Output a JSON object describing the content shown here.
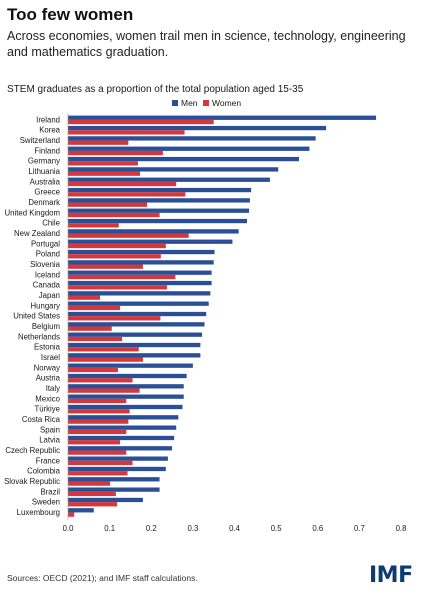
{
  "header": {
    "title": "Too few women",
    "subtitle": "Across economies, women trail men in science, technology, engineering and mathematics graduation."
  },
  "footer": {
    "source": "Sources: OECD (2021); and IMF staff calculations.",
    "logo_text": "IMF"
  },
  "colors": {
    "men": "#2a4f97",
    "women": "#d5373b",
    "logo": "#0e3a73"
  },
  "chart_data": {
    "type": "bar",
    "orientation": "horizontal",
    "title": "STEM graduates as a proportion of the total population aged 15-35",
    "xlim": [
      0,
      0.8
    ],
    "xticks": [
      "0.0",
      "0.1",
      "0.2",
      "0.3",
      "0.4",
      "0.5",
      "0.6",
      "0.7",
      "0.8"
    ],
    "legend_position": "top-center",
    "grid": false,
    "categories": [
      "Ireland",
      "Korea",
      "Switzerland",
      "Finland",
      "Germany",
      "Lithuania",
      "Australia",
      "Greece",
      "Denmark",
      "United Kingdom",
      "Chile",
      "New Zealand",
      "Portugal",
      "Poland",
      "Slovenia",
      "Iceland",
      "Canada",
      "Japan",
      "Hungary",
      "United States",
      "Belgium",
      "Netherlands",
      "Estonia",
      "Israel",
      "Norway",
      "Austria",
      "Italy",
      "Mexico",
      "Türkiye",
      "Costa Rica",
      "Spain",
      "Latvia",
      "Czech Republic",
      "France",
      "Colombia",
      "Slovak Republic",
      "Brazil",
      "Sweden",
      "Luxembourg"
    ],
    "series": [
      {
        "name": "Men",
        "values": [
          0.74,
          0.62,
          0.595,
          0.58,
          0.555,
          0.505,
          0.485,
          0.44,
          0.437,
          0.435,
          0.43,
          0.41,
          0.395,
          0.352,
          0.35,
          0.345,
          0.345,
          0.342,
          0.338,
          0.332,
          0.328,
          0.322,
          0.318,
          0.318,
          0.3,
          0.285,
          0.278,
          0.278,
          0.275,
          0.265,
          0.26,
          0.255,
          0.25,
          0.24,
          0.235,
          0.22,
          0.22,
          0.18,
          0.062
        ]
      },
      {
        "name": "Women",
        "values": [
          0.35,
          0.28,
          0.145,
          0.228,
          0.168,
          0.173,
          0.26,
          0.282,
          0.19,
          0.22,
          0.122,
          0.29,
          0.235,
          0.223,
          0.18,
          0.258,
          0.238,
          0.077,
          0.125,
          0.222,
          0.105,
          0.13,
          0.17,
          0.18,
          0.12,
          0.155,
          0.172,
          0.14,
          0.148,
          0.145,
          0.14,
          0.125,
          0.14,
          0.155,
          0.143,
          0.101,
          0.115,
          0.118,
          0.015
        ]
      }
    ]
  }
}
